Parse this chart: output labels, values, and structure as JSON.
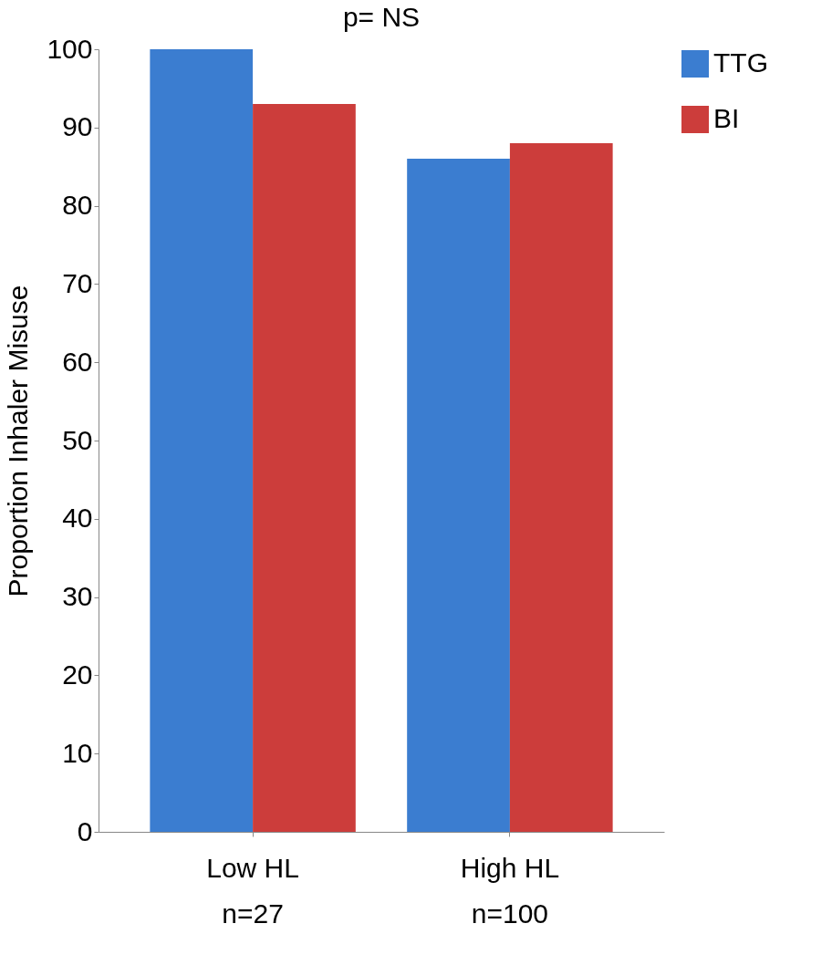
{
  "chart_data": {
    "type": "bar",
    "title": "p= NS",
    "ylabel": "Proportion Inhaler Misuse",
    "categories": [
      "Low HL\nn=27",
      "High HL\nn=100"
    ],
    "series": [
      {
        "name": "TTG",
        "color": "#3b7dd0",
        "values": [
          100,
          86
        ]
      },
      {
        "name": "BI",
        "color": "#cc3d3b",
        "values": [
          93,
          88
        ]
      }
    ],
    "ylim": [
      0,
      100
    ],
    "yticks": [
      0,
      10,
      20,
      30,
      40,
      50,
      60,
      70,
      80,
      90,
      100
    ],
    "grid": false,
    "legend": "right"
  }
}
